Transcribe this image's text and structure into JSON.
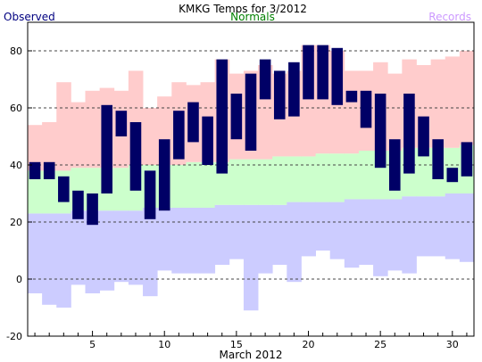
{
  "chart_data": {
    "type": "bar",
    "title": "KMKG Temps for 3/2012",
    "xlabel": "March 2012",
    "ylabel": "",
    "legend": [
      "Observed",
      "Normals",
      "Records"
    ],
    "legend_placement": "top",
    "colors": {
      "observed": "#000066",
      "observed_label": "#000080",
      "normals_band": "#ccffcc",
      "normals_label": "#008000",
      "record_high_band": "#ffcccc",
      "record_low_band": "#ccccff",
      "records_label": "#cc99ff",
      "grid": "#444444"
    },
    "ylim": [
      -20,
      90
    ],
    "yticks": [
      -20,
      0,
      20,
      40,
      60,
      80
    ],
    "xlim": [
      0.5,
      31.5
    ],
    "xticks": [
      5,
      10,
      15,
      20,
      25,
      30
    ],
    "grid": true,
    "days": [
      1,
      2,
      3,
      4,
      5,
      6,
      7,
      8,
      9,
      10,
      11,
      12,
      13,
      14,
      15,
      16,
      17,
      18,
      19,
      20,
      21,
      22,
      23,
      24,
      25,
      26,
      27,
      28,
      29,
      30,
      31
    ],
    "observed_high": [
      41,
      41,
      36,
      31,
      30,
      61,
      59,
      55,
      38,
      49,
      59,
      62,
      57,
      77,
      65,
      72,
      77,
      73,
      76,
      82,
      82,
      81,
      66,
      66,
      65,
      49,
      65,
      57,
      49,
      39,
      48
    ],
    "observed_low": [
      35,
      35,
      27,
      21,
      19,
      30,
      50,
      31,
      21,
      24,
      42,
      48,
      40,
      37,
      49,
      45,
      63,
      56,
      57,
      63,
      63,
      61,
      62,
      53,
      39,
      31,
      37,
      43,
      35,
      34,
      36
    ],
    "normal_high": [
      38,
      38,
      38,
      39,
      39,
      39,
      39,
      40,
      40,
      40,
      40,
      41,
      41,
      41,
      42,
      42,
      42,
      43,
      43,
      43,
      44,
      44,
      44,
      45,
      45,
      45,
      46,
      46,
      46,
      46,
      47
    ],
    "normal_low": [
      23,
      23,
      23,
      24,
      24,
      24,
      24,
      24,
      25,
      25,
      25,
      25,
      25,
      26,
      26,
      26,
      26,
      26,
      27,
      27,
      27,
      27,
      28,
      28,
      28,
      28,
      29,
      29,
      29,
      30,
      30
    ],
    "record_high": [
      54,
      55,
      69,
      62,
      66,
      67,
      66,
      73,
      60,
      64,
      69,
      68,
      69,
      77,
      72,
      73,
      75,
      72,
      73,
      82,
      82,
      80,
      73,
      73,
      76,
      72,
      77,
      75,
      77,
      78,
      80
    ],
    "record_low": [
      -5,
      -9,
      -10,
      -2,
      -5,
      -4,
      -1,
      -2,
      -6,
      3,
      2,
      2,
      2,
      5,
      7,
      -11,
      2,
      5,
      -1,
      8,
      10,
      7,
      4,
      5,
      1,
      3,
      2,
      8,
      8,
      7,
      6
    ]
  }
}
